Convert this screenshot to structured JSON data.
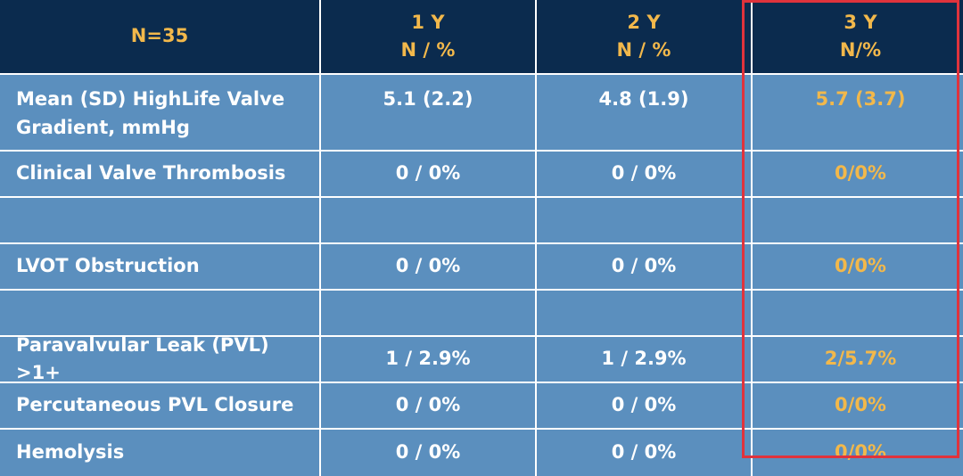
{
  "header": {
    "col0": "N=35",
    "col1": [
      "1 Y",
      "N / %"
    ],
    "col2": [
      "2 Y",
      "N / %"
    ],
    "col3": [
      "3 Y",
      "N/%"
    ]
  },
  "rows": [
    {
      "label": "Mean (SD) HighLife Valve Gradient, mmHg",
      "y1": "5.1 (2.2)",
      "y2": "4.8 (1.9)",
      "y3": "5.7 (3.7)"
    },
    {
      "label": "Clinical Valve Thrombosis",
      "y1": "0 / 0%",
      "y2": "0 / 0%",
      "y3": "0/0%"
    },
    {
      "label": "",
      "y1": "",
      "y2": "",
      "y3": ""
    },
    {
      "label": "LVOT Obstruction",
      "y1": "0 / 0%",
      "y2": "0 / 0%",
      "y3": "0/0%"
    },
    {
      "label": "",
      "y1": "",
      "y2": "",
      "y3": ""
    },
    {
      "label": "Paravalvular Leak (PVL) >1+",
      "y1": "1 / 2.9%",
      "y2": "1 / 2.9%",
      "y3": "2/5.7%"
    },
    {
      "label": "Percutaneous PVL Closure",
      "y1": "0 / 0%",
      "y2": "0 / 0%",
      "y3": "0/0%"
    },
    {
      "label": "Hemolysis",
      "y1": "0 / 0%",
      "y2": "0 / 0%",
      "y3": "0/0%"
    }
  ],
  "colors": {
    "header_bg": "#0b2b4e",
    "body_bg": "#5b8fbe",
    "accent_gold": "#f2b84b",
    "highlight_border": "#e0333c"
  }
}
